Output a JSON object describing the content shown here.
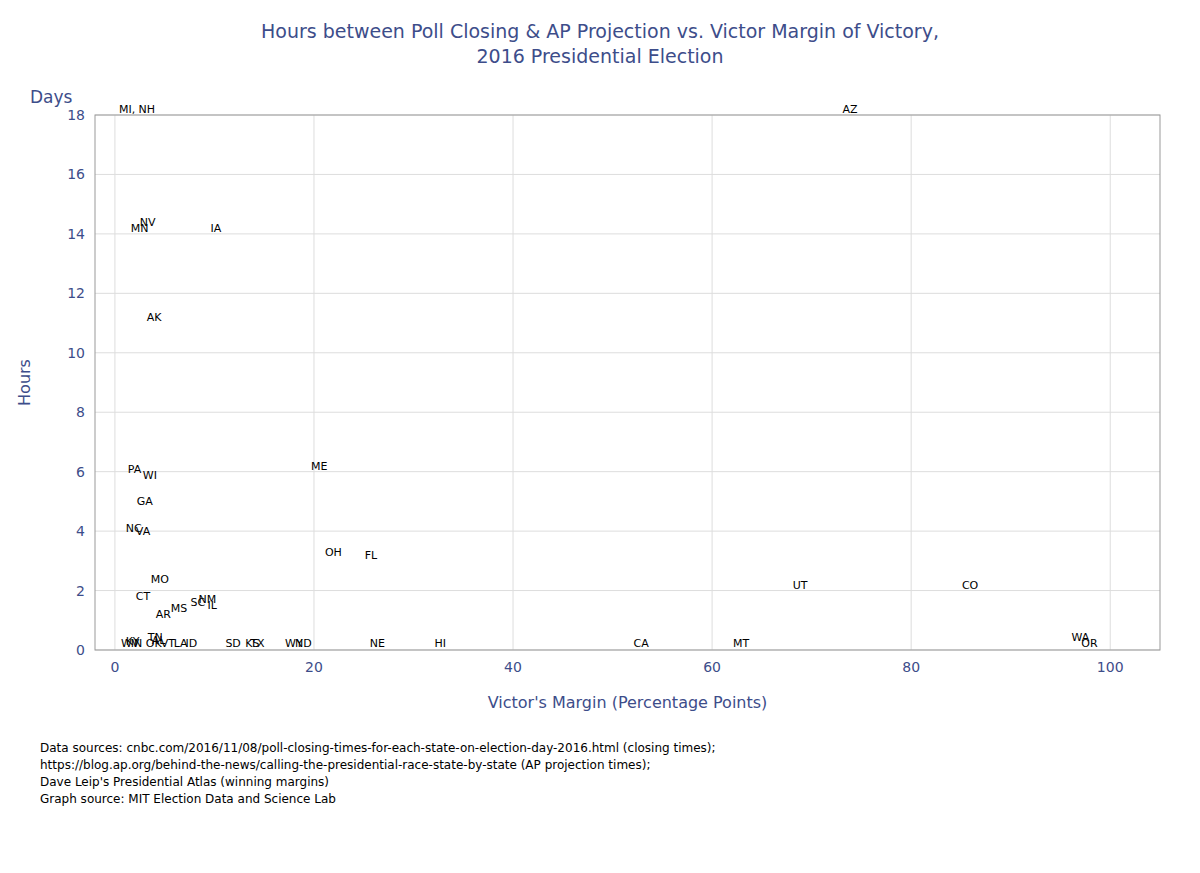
{
  "chart_data": {
    "type": "scatter",
    "title": "Hours between Poll Closing & AP Projection vs. Victor Margin of Victory,\n2016 Presidential Election",
    "xlabel": "Victor's Margin (Percentage Points)",
    "ylabel": "Hours",
    "annotations": [
      "Days"
    ],
    "footnote": "Data sources: cnbc.com/2016/11/08/poll-closing-times-for-each-state-on-election-day-2016.html (closing times);\nhttps://blog.ap.org/behind-the-news/calling-the-presidential-race-state-by-state (AP projection times);\nDave Leip's Presidential Atlas (winning margins)\nGraph source:  MIT Election Data and Science Lab",
    "color": "#3d4d8a",
    "labels": [
      "MI, NH",
      "AZ",
      "MN",
      "NV",
      "IA",
      "AK",
      "PA",
      "WI",
      "ME",
      "GA",
      "NC",
      "VA",
      "OH",
      "FL",
      "MO",
      "CT",
      "MS",
      "SC",
      "NM",
      "AR",
      "IL",
      "UT",
      "CO",
      "WA",
      "OR",
      "HI",
      "CA",
      "MT",
      "NE",
      "WV",
      "KY",
      "IN",
      "OK",
      "AL",
      "TN",
      "SD",
      "KS",
      "ND",
      "TX",
      "VT",
      "LA",
      "ID",
      "WY"
    ],
    "x": [
      0.3,
      73.0,
      1.5,
      2.4,
      9.5,
      3.1,
      1.2,
      2.7,
      19.6,
      2.1,
      1.0,
      2.0,
      21.0,
      25.0,
      3.5,
      2.0,
      5.5,
      7.5,
      8.3,
      4.0,
      9.2,
      68.0,
      85.0,
      96.0,
      97.0,
      32.0,
      52.0,
      62.0,
      25.5,
      0.5,
      1.0,
      1.5,
      3.0,
      3.6,
      3.2,
      11.0,
      13.0,
      18.0,
      13.5,
      4.5,
      5.8,
      7.0,
      17.0
    ],
    "values": [
      18.0,
      18.0,
      14.0,
      14.2,
      14.0,
      11.0,
      5.9,
      5.7,
      6.0,
      4.8,
      3.9,
      3.8,
      3.1,
      3.0,
      2.2,
      1.6,
      1.2,
      1.4,
      1.5,
      1.0,
      1.3,
      2.0,
      2.0,
      0.25,
      0.05,
      0.05,
      0.05,
      0.05,
      0.05,
      0.05,
      0.1,
      0.05,
      0.05,
      0.15,
      0.25,
      0.05,
      0.05,
      0.05,
      0.05,
      0.05,
      0.05,
      0.05,
      0.05
    ],
    "xlim": [
      -2,
      105
    ],
    "ylim": [
      0,
      18
    ],
    "xticks": [
      0,
      20,
      40,
      60,
      80,
      100
    ],
    "yticks": [
      0,
      2,
      4,
      6,
      8,
      10,
      12,
      14,
      16,
      18
    ],
    "grid": true
  }
}
